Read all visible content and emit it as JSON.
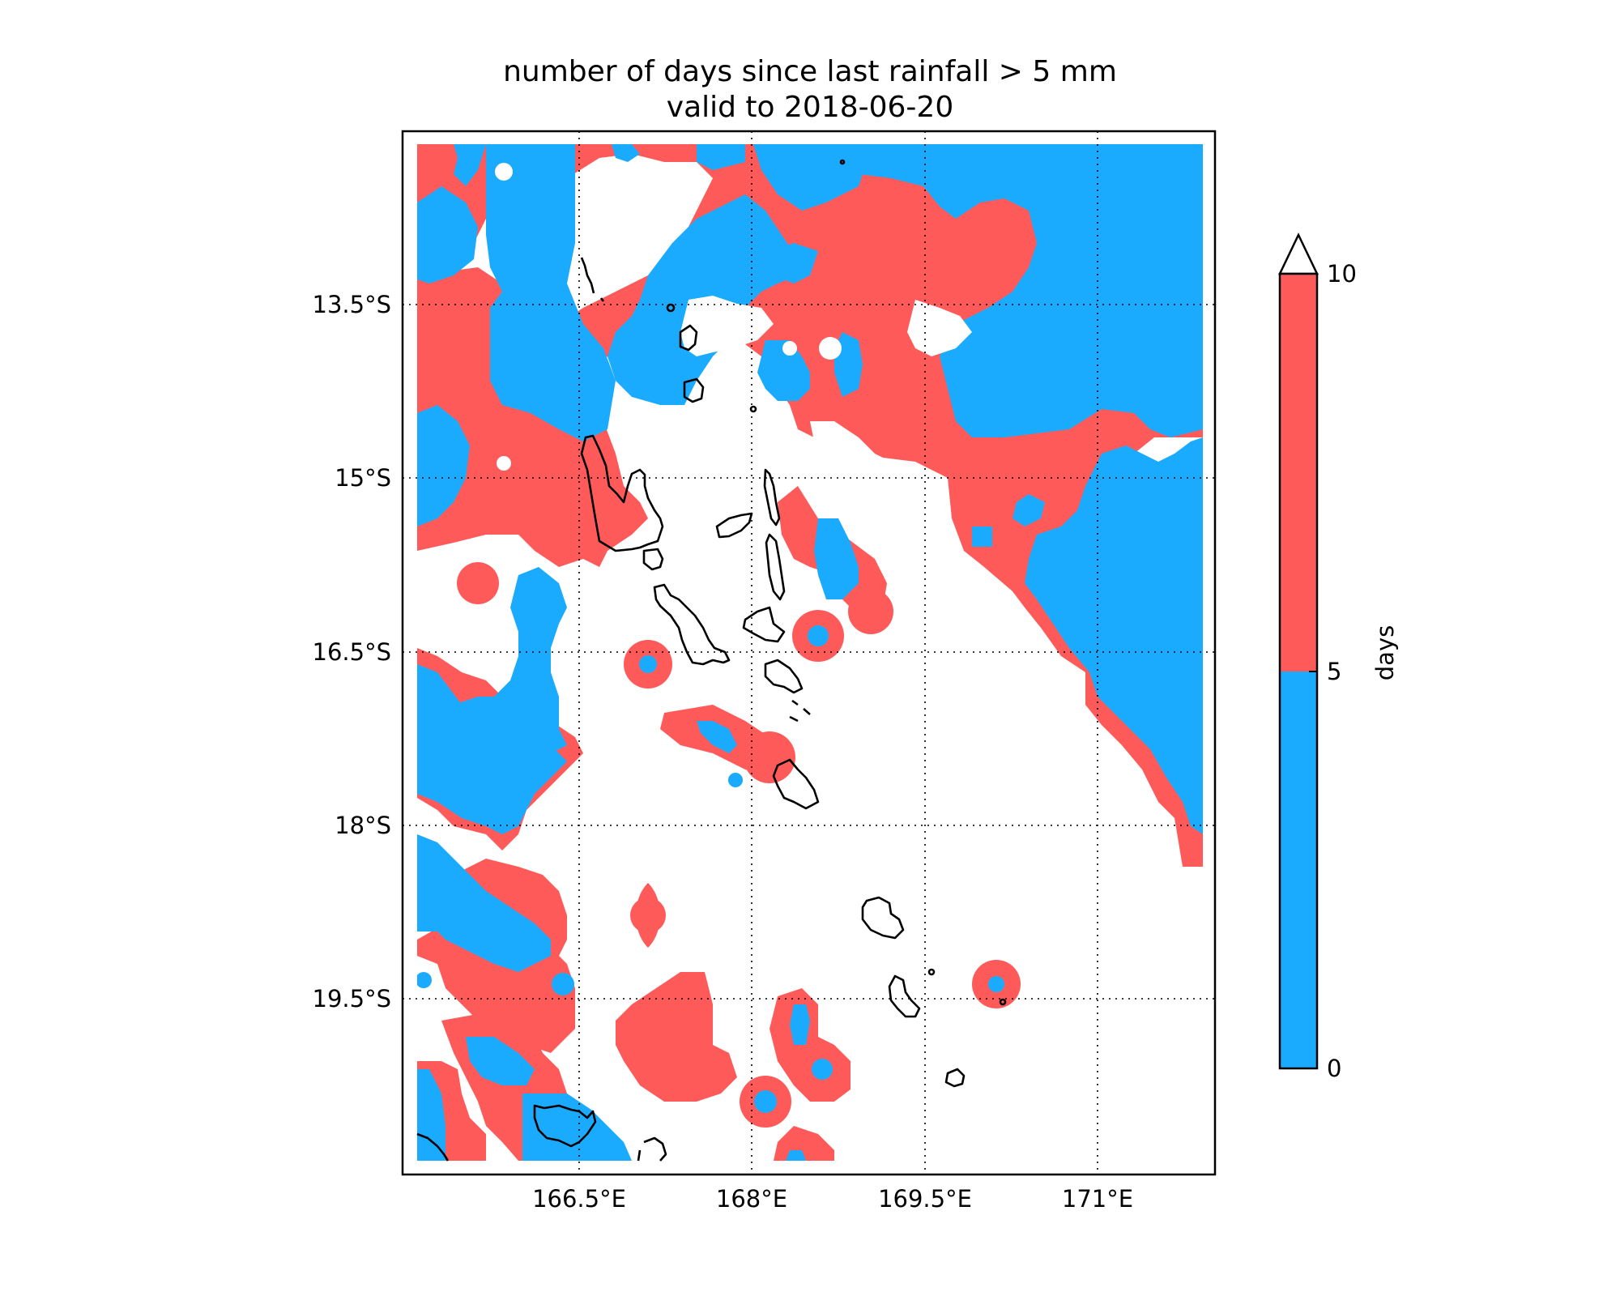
{
  "title_line1": "number of days since last rainfall > 5 mm",
  "title_line2": "valid to 2018-06-20",
  "lon_ticks": [
    "166.5°E",
    "168°E",
    "169.5°E",
    "171°E"
  ],
  "lat_ticks": [
    "13.5°S",
    "15°S",
    "16.5°S",
    "18°S",
    "19.5°S"
  ],
  "colorbar": {
    "label": "days",
    "ticks": [
      "0",
      "5",
      "10"
    ],
    "extend": "max"
  },
  "colors": {
    "below_5_days": "#1aabff",
    "5_to_10_days": "#ff5a5a",
    "over_10_days": "#ffffff"
  }
}
